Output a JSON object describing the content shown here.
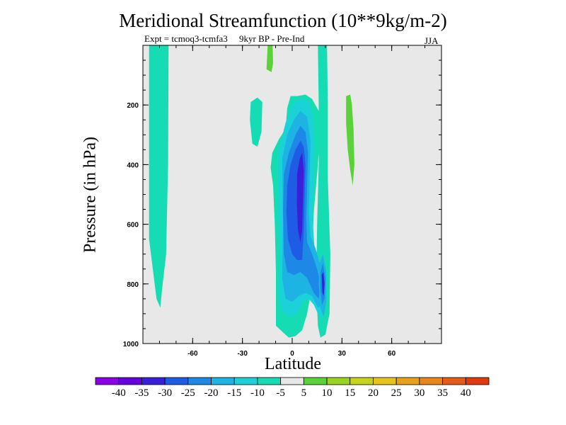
{
  "chart_data": {
    "type": "heatmap",
    "title": "Meridional Streamfunction (10**9kg/m-2)",
    "subtitle": "Expt = tcmoq3-tcmfa3     9kyr BP - Pre-Ind",
    "season": "JJA",
    "xlabel": "Latitude",
    "ylabel": "Pressure (in hPa)",
    "xlim": [
      -90,
      90
    ],
    "ylim": [
      1000,
      0
    ],
    "x_ticks": [
      -60,
      -30,
      0,
      30,
      60
    ],
    "y_ticks": [
      200,
      400,
      600,
      800,
      1000
    ],
    "colorbar": {
      "labels": [
        "-40",
        "-35",
        "-30",
        "-25",
        "-20",
        "-15",
        "-10",
        "-5",
        "5",
        "10",
        "15",
        "20",
        "25",
        "30",
        "35",
        "40"
      ],
      "colors": [
        "#8c00e6",
        "#6500e0",
        "#3a1fd8",
        "#1e5ce6",
        "#1d88e6",
        "#1db3e2",
        "#1ad2d8",
        "#16dcb4",
        "#e8e8e8",
        "#5ad23a",
        "#9ad41e",
        "#c8d41a",
        "#e8c41a",
        "#e8a21a",
        "#e8861a",
        "#e65a1a",
        "#e03a0e"
      ]
    },
    "regions": [
      {
        "name": "positive-5-10-high-south",
        "value": 7,
        "color": "#5ad23a"
      },
      {
        "name": "negative-5-10-south-column",
        "value": -7,
        "color": "#16dcb4"
      },
      {
        "name": "negative-5-10-mid-south",
        "value": -7,
        "color": "#16dcb4"
      },
      {
        "name": "negative-5-10-main-cell",
        "value": -7,
        "color": "#16dcb4"
      },
      {
        "name": "negative-5-10-eq-column",
        "value": -7,
        "color": "#16dcb4"
      },
      {
        "name": "positive-5-10-north",
        "value": 7,
        "color": "#5ad23a"
      },
      {
        "name": "negative-10-15",
        "value": -12,
        "color": "#1ad2d8"
      },
      {
        "name": "negative-15-20",
        "value": -17,
        "color": "#1db3e2"
      },
      {
        "name": "negative-20-25",
        "value": -22,
        "color": "#1d88e6"
      },
      {
        "name": "negative-25-30",
        "value": -27,
        "color": "#1e5ce6"
      },
      {
        "name": "negative-30-35",
        "value": -32,
        "color": "#3a1fd8"
      },
      {
        "name": "negative-15-20-lower",
        "value": -17,
        "color": "#1db3e2"
      },
      {
        "name": "negative-20-25-lower",
        "value": -22,
        "color": "#1d88e6"
      },
      {
        "name": "negative-30-35-lower",
        "value": -32,
        "color": "#3a1fd8"
      }
    ],
    "background_color": "#e8e8e8"
  }
}
